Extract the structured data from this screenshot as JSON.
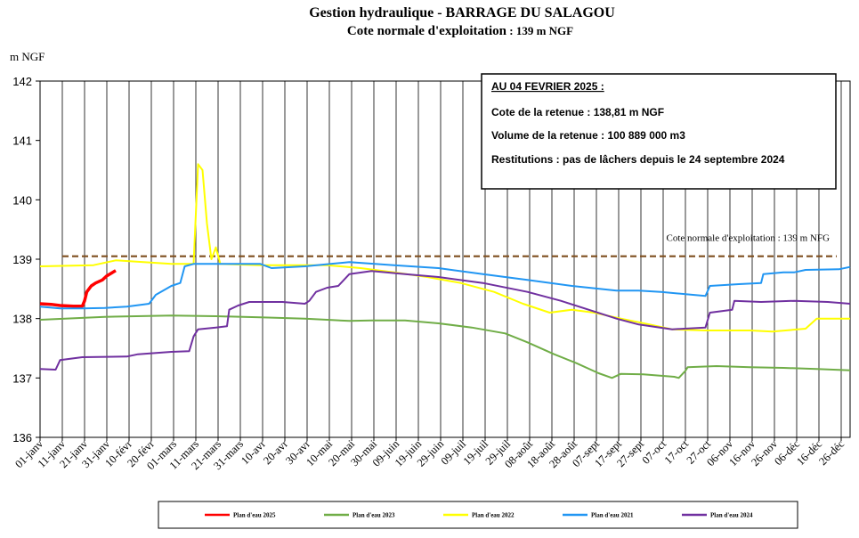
{
  "chart_data": {
    "type": "line",
    "title": "Gestion hydraulique - BARRAGE DU SALAGOU",
    "subtitle_main": "Cote normale d'exploitation",
    "subtitle_value": " : 139 m NGF",
    "ylabel": "m NGF",
    "ylim": [
      136,
      142
    ],
    "yticks": [
      "136",
      "137",
      "138",
      "139",
      "140",
      "141",
      "142"
    ],
    "xlim": [
      1,
      365
    ],
    "xticks": [
      {
        "day": 1,
        "label": "01-janv"
      },
      {
        "day": 11,
        "label": "11-janv"
      },
      {
        "day": 21,
        "label": "21-janv"
      },
      {
        "day": 31,
        "label": "31-janv"
      },
      {
        "day": 41,
        "label": "10-févr"
      },
      {
        "day": 51,
        "label": "20-févr"
      },
      {
        "day": 61,
        "label": "01-mars"
      },
      {
        "day": 71,
        "label": "11-mars"
      },
      {
        "day": 81,
        "label": "21-mars"
      },
      {
        "day": 91,
        "label": "31-mars"
      },
      {
        "day": 101,
        "label": "10-avr"
      },
      {
        "day": 111,
        "label": "20-avr"
      },
      {
        "day": 121,
        "label": "30-avr"
      },
      {
        "day": 131,
        "label": "10-mai"
      },
      {
        "day": 141,
        "label": "20-mai"
      },
      {
        "day": 151,
        "label": "30-mai"
      },
      {
        "day": 161,
        "label": "09-juin"
      },
      {
        "day": 171,
        "label": "19-juin"
      },
      {
        "day": 181,
        "label": "29-juin"
      },
      {
        "day": 191,
        "label": "09-juil"
      },
      {
        "day": 201,
        "label": "19-juil"
      },
      {
        "day": 211,
        "label": "29-juil"
      },
      {
        "day": 221,
        "label": "08-août"
      },
      {
        "day": 231,
        "label": "18-août"
      },
      {
        "day": 241,
        "label": "28-août"
      },
      {
        "day": 251,
        "label": "07-sept"
      },
      {
        "day": 261,
        "label": "17-sept"
      },
      {
        "day": 271,
        "label": "27-sept"
      },
      {
        "day": 281,
        "label": "07-oct"
      },
      {
        "day": 291,
        "label": "17-oct"
      },
      {
        "day": 301,
        "label": "27-oct"
      },
      {
        "day": 311,
        "label": "06-nov"
      },
      {
        "day": 321,
        "label": "16-nov"
      },
      {
        "day": 331,
        "label": "26-nov"
      },
      {
        "day": 341,
        "label": "06-déc"
      },
      {
        "day": 351,
        "label": "16-déc"
      },
      {
        "day": 361,
        "label": "26-déc"
      }
    ],
    "grid": "vertical",
    "reference_line": {
      "y": 139.05,
      "label": "Cote normale d'exploitation : 139 m NFG",
      "color": "#7f4f1f"
    },
    "info_box": {
      "heading": "AU 04 FEVRIER 2025 :",
      "line1": "Cote de la retenue : 138,81 m NGF",
      "line2": "Volume de la retenue : 100 889 000 m3",
      "line3": "Restitutions : pas de lâchers depuis le 24 septembre 2024"
    },
    "legend_position": "bottom",
    "series": [
      {
        "name": "Plan d'eau 2025",
        "color": "#ff0000",
        "width": 3.5,
        "points": [
          [
            1,
            138.25
          ],
          [
            6,
            138.24
          ],
          [
            10,
            138.22
          ],
          [
            16,
            138.21
          ],
          [
            20,
            138.21
          ],
          [
            21,
            138.3
          ],
          [
            22,
            138.45
          ],
          [
            24,
            138.55
          ],
          [
            26,
            138.6
          ],
          [
            29,
            138.65
          ],
          [
            31,
            138.72
          ],
          [
            35,
            138.81
          ]
        ]
      },
      {
        "name": "Plan d'eau 2023",
        "color": "#70ad47",
        "width": 2,
        "points": [
          [
            1,
            137.98
          ],
          [
            30,
            138.03
          ],
          [
            60,
            138.05
          ],
          [
            80,
            138.04
          ],
          [
            100,
            138.02
          ],
          [
            110,
            138.01
          ],
          [
            120,
            138.0
          ],
          [
            130,
            137.98
          ],
          [
            140,
            137.96
          ],
          [
            150,
            137.97
          ],
          [
            165,
            137.97
          ],
          [
            180,
            137.92
          ],
          [
            195,
            137.85
          ],
          [
            210,
            137.75
          ],
          [
            220,
            137.6
          ],
          [
            232,
            137.4
          ],
          [
            242,
            137.25
          ],
          [
            252,
            137.08
          ],
          [
            258,
            137.0
          ],
          [
            262,
            137.07
          ],
          [
            272,
            137.06
          ],
          [
            286,
            137.02
          ],
          [
            288,
            137.0
          ],
          [
            291,
            137.12
          ],
          [
            292,
            137.18
          ],
          [
            305,
            137.2
          ],
          [
            320,
            137.18
          ],
          [
            335,
            137.17
          ],
          [
            350,
            137.15
          ],
          [
            365,
            137.13
          ]
        ]
      },
      {
        "name": "Plan d'eau 2022",
        "color": "#ffff00",
        "width": 2,
        "points": [
          [
            1,
            138.88
          ],
          [
            25,
            138.9
          ],
          [
            35,
            138.98
          ],
          [
            60,
            138.92
          ],
          [
            69,
            138.92
          ],
          [
            70,
            138.92
          ],
          [
            72,
            140.6
          ],
          [
            74,
            140.5
          ],
          [
            76,
            139.6
          ],
          [
            78,
            139.0
          ],
          [
            80,
            139.2
          ],
          [
            82,
            138.92
          ],
          [
            100,
            138.9
          ],
          [
            130,
            138.9
          ],
          [
            145,
            138.85
          ],
          [
            160,
            138.78
          ],
          [
            175,
            138.7
          ],
          [
            190,
            138.6
          ],
          [
            205,
            138.45
          ],
          [
            218,
            138.25
          ],
          [
            230,
            138.1
          ],
          [
            240,
            138.15
          ],
          [
            250,
            138.1
          ],
          [
            262,
            138.0
          ],
          [
            275,
            137.9
          ],
          [
            285,
            137.82
          ],
          [
            300,
            137.8
          ],
          [
            320,
            137.8
          ],
          [
            330,
            137.78
          ],
          [
            345,
            137.83
          ],
          [
            350,
            138.0
          ],
          [
            365,
            138.0
          ]
        ]
      },
      {
        "name": "Plan d'eau 2021",
        "color": "#2196f3",
        "width": 2,
        "points": [
          [
            1,
            138.2
          ],
          [
            10,
            138.17
          ],
          [
            20,
            138.17
          ],
          [
            30,
            138.18
          ],
          [
            40,
            138.2
          ],
          [
            50,
            138.25
          ],
          [
            53,
            138.4
          ],
          [
            60,
            138.55
          ],
          [
            64,
            138.6
          ],
          [
            66,
            138.88
          ],
          [
            70,
            138.92
          ],
          [
            90,
            138.92
          ],
          [
            100,
            138.92
          ],
          [
            105,
            138.85
          ],
          [
            120,
            138.88
          ],
          [
            140,
            138.95
          ],
          [
            160,
            138.9
          ],
          [
            180,
            138.85
          ],
          [
            200,
            138.75
          ],
          [
            220,
            138.65
          ],
          [
            240,
            138.55
          ],
          [
            260,
            138.47
          ],
          [
            270,
            138.47
          ],
          [
            280,
            138.45
          ],
          [
            300,
            138.38
          ],
          [
            302,
            138.55
          ],
          [
            315,
            138.58
          ],
          [
            325,
            138.6
          ],
          [
            326,
            138.75
          ],
          [
            335,
            138.78
          ],
          [
            340,
            138.78
          ],
          [
            345,
            138.82
          ],
          [
            360,
            138.83
          ],
          [
            365,
            138.87
          ]
        ]
      },
      {
        "name": "Plan d'eau 2024",
        "color": "#7030a0",
        "width": 2,
        "points": [
          [
            1,
            137.15
          ],
          [
            8,
            137.14
          ],
          [
            10,
            137.3
          ],
          [
            20,
            137.35
          ],
          [
            40,
            137.36
          ],
          [
            45,
            137.4
          ],
          [
            60,
            137.44
          ],
          [
            68,
            137.45
          ],
          [
            70,
            137.7
          ],
          [
            72,
            137.82
          ],
          [
            80,
            137.85
          ],
          [
            85,
            137.87
          ],
          [
            86,
            138.15
          ],
          [
            90,
            138.22
          ],
          [
            95,
            138.28
          ],
          [
            110,
            138.28
          ],
          [
            120,
            138.25
          ],
          [
            122,
            138.3
          ],
          [
            125,
            138.45
          ],
          [
            130,
            138.52
          ],
          [
            135,
            138.55
          ],
          [
            140,
            138.75
          ],
          [
            150,
            138.8
          ],
          [
            165,
            138.75
          ],
          [
            180,
            138.7
          ],
          [
            200,
            138.6
          ],
          [
            220,
            138.45
          ],
          [
            235,
            138.3
          ],
          [
            250,
            138.12
          ],
          [
            260,
            138.0
          ],
          [
            270,
            137.9
          ],
          [
            285,
            137.82
          ],
          [
            300,
            137.85
          ],
          [
            302,
            138.1
          ],
          [
            312,
            138.15
          ],
          [
            313,
            138.3
          ],
          [
            325,
            138.28
          ],
          [
            340,
            138.3
          ],
          [
            355,
            138.28
          ],
          [
            365,
            138.25
          ]
        ]
      }
    ]
  }
}
